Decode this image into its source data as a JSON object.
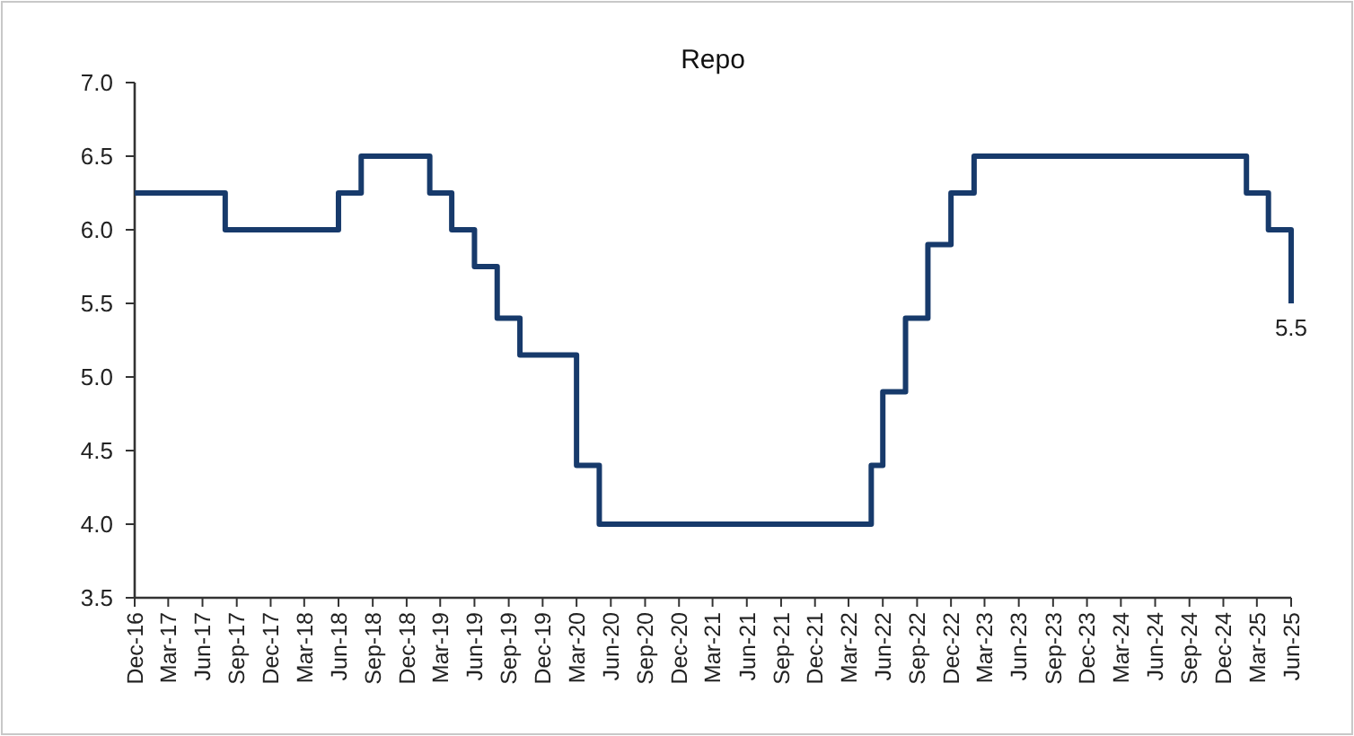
{
  "chart_data": {
    "type": "step",
    "title": "Repo",
    "grid": false,
    "line_style": "solid",
    "x": [
      "2016-12",
      "2017-08",
      "2018-06",
      "2018-08",
      "2019-02",
      "2019-04",
      "2019-06",
      "2019-08",
      "2019-10",
      "2020-03",
      "2020-05",
      "2022-05",
      "2022-06",
      "2022-08",
      "2022-09-30",
      "2022-12",
      "2023-02",
      "2025-02",
      "2025-04",
      "2025-06"
    ],
    "series": [
      {
        "color": "#173a6b",
        "values": [
          6.25,
          6.0,
          6.25,
          6.5,
          6.25,
          6.0,
          5.75,
          5.4,
          5.15,
          4.4,
          4.0,
          4.4,
          4.9,
          5.4,
          5.9,
          6.25,
          6.5,
          6.25,
          6.0,
          5.5
        ]
      }
    ],
    "annotations": [
      {
        "text": "5.5",
        "x": "2025-06",
        "y": 5.5
      }
    ],
    "xlim": [
      "2016-12",
      "2025-06"
    ],
    "xticks": [
      {
        "value": "2016-12",
        "label": "Dec-16"
      },
      {
        "value": "2017-03",
        "label": "Mar-17"
      },
      {
        "value": "2017-06",
        "label": "Jun-17"
      },
      {
        "value": "2017-09",
        "label": "Sep-17"
      },
      {
        "value": "2017-12",
        "label": "Dec-17"
      },
      {
        "value": "2018-03",
        "label": "Mar-18"
      },
      {
        "value": "2018-06",
        "label": "Jun-18"
      },
      {
        "value": "2018-09",
        "label": "Sep-18"
      },
      {
        "value": "2018-12",
        "label": "Dec-18"
      },
      {
        "value": "2019-03",
        "label": "Mar-19"
      },
      {
        "value": "2019-06",
        "label": "Jun-19"
      },
      {
        "value": "2019-09",
        "label": "Sep-19"
      },
      {
        "value": "2019-12",
        "label": "Dec-19"
      },
      {
        "value": "2020-03",
        "label": "Mar-20"
      },
      {
        "value": "2020-06",
        "label": "Jun-20"
      },
      {
        "value": "2020-09",
        "label": "Sep-20"
      },
      {
        "value": "2020-12",
        "label": "Dec-20"
      },
      {
        "value": "2021-03",
        "label": "Mar-21"
      },
      {
        "value": "2021-06",
        "label": "Jun-21"
      },
      {
        "value": "2021-09",
        "label": "Sep-21"
      },
      {
        "value": "2021-12",
        "label": "Dec-21"
      },
      {
        "value": "2022-03",
        "label": "Mar-22"
      },
      {
        "value": "2022-06",
        "label": "Jun-22"
      },
      {
        "value": "2022-09",
        "label": "Sep-22"
      },
      {
        "value": "2022-12",
        "label": "Dec-22"
      },
      {
        "value": "2023-03",
        "label": "Mar-23"
      },
      {
        "value": "2023-06",
        "label": "Jun-23"
      },
      {
        "value": "2023-09",
        "label": "Sep-23"
      },
      {
        "value": "2023-12",
        "label": "Dec-23"
      },
      {
        "value": "2024-03",
        "label": "Mar-24"
      },
      {
        "value": "2024-06",
        "label": "Jun-24"
      },
      {
        "value": "2024-09",
        "label": "Sep-24"
      },
      {
        "value": "2024-12",
        "label": "Dec-24"
      },
      {
        "value": "2025-03",
        "label": "Mar-25"
      },
      {
        "value": "2025-06",
        "label": "Jun-25"
      }
    ],
    "ylim": [
      3.5,
      7.0
    ],
    "yticks": [
      {
        "value": 3.5,
        "label": "3.5"
      },
      {
        "value": 4.0,
        "label": "4.0"
      },
      {
        "value": 4.5,
        "label": "4.5"
      },
      {
        "value": 5.0,
        "label": "5.0"
      },
      {
        "value": 5.5,
        "label": "5.5"
      },
      {
        "value": 6.0,
        "label": "6.0"
      },
      {
        "value": 6.5,
        "label": "6.5"
      },
      {
        "value": 7.0,
        "label": "7.0"
      }
    ]
  }
}
